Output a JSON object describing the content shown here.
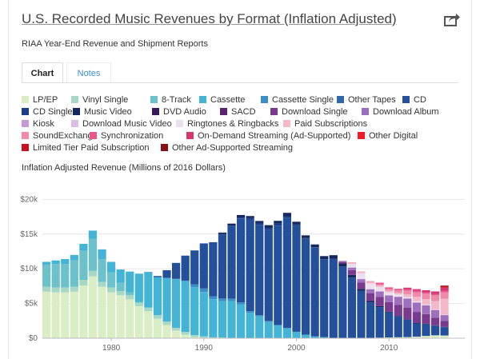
{
  "header": {
    "title": "U.S. Recorded Music Revenues by Format (Inflation Adjusted)",
    "subtitle": "RIAA Year-End Revenue and Shipment Reports",
    "share_icon": "share-icon"
  },
  "tabs": [
    {
      "label": "Chart"
    },
    {
      "label": "Notes"
    }
  ],
  "chart_data": {
    "type": "bar",
    "stacked": true,
    "title": "U.S. Recorded Music Revenues by Format (Inflation Adjusted)",
    "ylabel": "Inflation Adjusted Revenue (Millions of 2016 Dollars)",
    "xlabel": "",
    "ylim": [
      0,
      22000
    ],
    "yticks": [
      {
        "v": 0,
        "label": "$0"
      },
      {
        "v": 5000,
        "label": "$5k"
      },
      {
        "v": 10000,
        "label": "$10k"
      },
      {
        "v": 15000,
        "label": "$15k"
      },
      {
        "v": 20000,
        "label": "$20k"
      }
    ],
    "xticks": [
      1980,
      1990,
      2000,
      2010
    ],
    "categories": [
      1973,
      1974,
      1975,
      1976,
      1977,
      1978,
      1979,
      1980,
      1981,
      1982,
      1983,
      1984,
      1985,
      1986,
      1987,
      1988,
      1989,
      1990,
      1991,
      1992,
      1993,
      1994,
      1995,
      1996,
      1997,
      1998,
      1999,
      2000,
      2001,
      2002,
      2003,
      2004,
      2005,
      2006,
      2007,
      2008,
      2009,
      2010,
      2011,
      2012,
      2013,
      2014,
      2015,
      2016
    ],
    "series": [
      {
        "name": "LP/EP",
        "color": "#d9eec4",
        "values": [
          6700,
          6600,
          6600,
          6700,
          7600,
          8900,
          7400,
          6600,
          6200,
          5600,
          4600,
          3900,
          2800,
          1900,
          1100,
          500,
          150,
          60,
          30,
          20,
          10,
          10,
          10,
          10,
          10,
          10,
          10,
          10,
          10,
          10,
          10,
          10,
          10,
          10,
          10,
          50,
          80,
          110,
          140,
          160,
          230,
          330,
          420,
          390
        ]
      },
      {
        "name": "Vinyl Single",
        "color": "#a7d8c4",
        "values": [
          700,
          700,
          700,
          700,
          800,
          800,
          700,
          700,
          600,
          600,
          500,
          500,
          500,
          500,
          400,
          400,
          300,
          200,
          100,
          100,
          50,
          40,
          40,
          30,
          30,
          20,
          10,
          10,
          10,
          0,
          0,
          0,
          0,
          0,
          0,
          0,
          0,
          0,
          0,
          0,
          0,
          0,
          0,
          0
        ]
      },
      {
        "name": "8-Track",
        "color": "#6dc1cb",
        "values": [
          3200,
          3400,
          3400,
          3800,
          4200,
          4600,
          3300,
          2200,
          1200,
          400,
          100,
          30,
          10,
          0,
          0,
          0,
          0,
          0,
          0,
          0,
          0,
          0,
          0,
          0,
          0,
          0,
          0,
          0,
          0,
          0,
          0,
          0,
          0,
          0,
          0,
          0,
          0,
          0,
          0,
          0,
          0,
          0,
          0,
          0
        ]
      },
      {
        "name": "Cassette",
        "color": "#43b3d6",
        "values": [
          400,
          500,
          700,
          800,
          1000,
          1200,
          1400,
          1500,
          1900,
          3000,
          4100,
          5100,
          5500,
          6300,
          7000,
          7300,
          6900,
          6400,
          5500,
          5200,
          5300,
          4800,
          3600,
          3100,
          2300,
          1800,
          1400,
          900,
          500,
          250,
          150,
          40,
          20,
          10,
          0,
          0,
          0,
          0,
          0,
          0,
          0,
          0,
          0,
          0
        ]
      },
      {
        "name": "Cassette Single",
        "color": "#3a8fc8",
        "values": [
          0,
          0,
          0,
          0,
          0,
          0,
          0,
          0,
          0,
          0,
          0,
          0,
          0,
          0,
          50,
          100,
          400,
          500,
          400,
          400,
          350,
          300,
          250,
          200,
          150,
          80,
          40,
          10,
          0,
          0,
          0,
          0,
          0,
          0,
          0,
          0,
          0,
          0,
          0,
          0,
          0,
          0,
          0,
          0
        ]
      },
      {
        "name": "Other Tapes",
        "color": "#2e6aa8",
        "values": [
          0,
          0,
          0,
          0,
          0,
          0,
          0,
          0,
          0,
          0,
          0,
          0,
          0,
          0,
          0,
          0,
          0,
          0,
          0,
          0,
          0,
          0,
          0,
          0,
          0,
          0,
          0,
          0,
          0,
          0,
          0,
          0,
          0,
          0,
          0,
          0,
          0,
          0,
          0,
          0,
          0,
          0,
          0,
          0
        ]
      },
      {
        "name": "CD",
        "color": "#24509b",
        "values": [
          0,
          0,
          0,
          0,
          0,
          0,
          0,
          0,
          0,
          0,
          0,
          20,
          150,
          1100,
          2300,
          3600,
          4900,
          6500,
          7800,
          9300,
          10500,
          12100,
          13200,
          13000,
          13100,
          14300,
          15900,
          15300,
          13800,
          12800,
          11200,
          11400,
          10300,
          8700,
          6800,
          5100,
          4400,
          3600,
          3000,
          2500,
          1900,
          1700,
          1400,
          1200
        ]
      },
      {
        "name": "CD Single",
        "color": "#1c3d8c",
        "values": [
          0,
          0,
          0,
          0,
          0,
          0,
          0,
          0,
          0,
          0,
          0,
          0,
          0,
          0,
          0,
          0,
          0,
          0,
          0,
          0,
          0,
          100,
          200,
          250,
          300,
          300,
          200,
          150,
          100,
          50,
          20,
          10,
          0,
          0,
          0,
          0,
          0,
          0,
          0,
          0,
          0,
          0,
          0,
          0
        ]
      },
      {
        "name": "Music Video",
        "color": "#14275e",
        "values": [
          0,
          0,
          0,
          0,
          0,
          0,
          0,
          0,
          0,
          0,
          0,
          0,
          0,
          0,
          0,
          0,
          0,
          0,
          0,
          200,
          300,
          400,
          300,
          300,
          400,
          400,
          500,
          400,
          400,
          400,
          450,
          500,
          450,
          400,
          300,
          200,
          150,
          100,
          80,
          60,
          60,
          50,
          50,
          40
        ]
      },
      {
        "name": "DVD Audio",
        "color": "#3a1a5e",
        "values": [
          0,
          0,
          0,
          0,
          0,
          0,
          0,
          0,
          0,
          0,
          0,
          0,
          0,
          0,
          0,
          0,
          0,
          0,
          0,
          0,
          0,
          0,
          0,
          0,
          0,
          0,
          0,
          0,
          0,
          0,
          0,
          0,
          0,
          0,
          0,
          0,
          0,
          0,
          0,
          0,
          0,
          0,
          0,
          0
        ]
      },
      {
        "name": "SACD",
        "color": "#5a2570",
        "values": [
          0,
          0,
          0,
          0,
          0,
          0,
          0,
          0,
          0,
          0,
          0,
          0,
          0,
          0,
          0,
          0,
          0,
          0,
          0,
          0,
          0,
          0,
          0,
          0,
          0,
          0,
          0,
          0,
          0,
          0,
          0,
          0,
          0,
          0,
          0,
          0,
          0,
          0,
          0,
          0,
          0,
          0,
          0,
          0
        ]
      },
      {
        "name": "Download Single",
        "color": "#7a3a8e",
        "values": [
          0,
          0,
          0,
          0,
          0,
          0,
          0,
          0,
          0,
          0,
          0,
          0,
          0,
          0,
          0,
          0,
          0,
          0,
          0,
          0,
          0,
          0,
          0,
          0,
          0,
          0,
          0,
          0,
          0,
          0,
          0,
          0,
          200,
          700,
          900,
          1100,
          1300,
          1400,
          1600,
          1700,
          1600,
          1400,
          1100,
          850
        ]
      },
      {
        "name": "Download Album",
        "color": "#9e6fbf",
        "values": [
          0,
          0,
          0,
          0,
          0,
          0,
          0,
          0,
          0,
          0,
          0,
          0,
          0,
          0,
          0,
          0,
          0,
          0,
          0,
          0,
          0,
          0,
          0,
          0,
          0,
          0,
          0,
          0,
          0,
          0,
          0,
          0,
          150,
          350,
          500,
          600,
          800,
          950,
          1150,
          1300,
          1350,
          1250,
          1100,
          850
        ]
      },
      {
        "name": "Kiosk",
        "color": "#c59ad4",
        "values": [
          0,
          0,
          0,
          0,
          0,
          0,
          0,
          0,
          0,
          0,
          0,
          0,
          0,
          0,
          0,
          0,
          0,
          0,
          0,
          0,
          0,
          0,
          0,
          0,
          0,
          0,
          0,
          0,
          0,
          0,
          0,
          0,
          0,
          0,
          0,
          0,
          0,
          0,
          0,
          0,
          0,
          0,
          0,
          0
        ]
      },
      {
        "name": "Download Music Video",
        "color": "#d9bde3",
        "values": [
          0,
          0,
          0,
          0,
          0,
          0,
          0,
          0,
          0,
          0,
          0,
          0,
          0,
          0,
          0,
          0,
          0,
          0,
          0,
          0,
          0,
          0,
          0,
          0,
          0,
          0,
          0,
          0,
          0,
          0,
          0,
          0,
          0,
          30,
          50,
          50,
          50,
          40,
          30,
          20,
          20,
          10,
          10,
          10
        ]
      },
      {
        "name": "Ringtones & Ringbacks",
        "color": "#ece0ef",
        "values": [
          0,
          0,
          0,
          0,
          0,
          0,
          0,
          0,
          0,
          0,
          0,
          0,
          0,
          0,
          0,
          0,
          0,
          0,
          0,
          0,
          0,
          0,
          0,
          0,
          0,
          0,
          0,
          0,
          0,
          0,
          0,
          0,
          0,
          500,
          800,
          800,
          600,
          400,
          300,
          200,
          150,
          100,
          70,
          60
        ]
      },
      {
        "name": "Paid Subscriptions",
        "color": "#f5b8c8",
        "values": [
          0,
          0,
          0,
          0,
          0,
          0,
          0,
          0,
          0,
          0,
          0,
          0,
          0,
          0,
          0,
          0,
          0,
          0,
          0,
          0,
          0,
          0,
          0,
          0,
          0,
          0,
          0,
          0,
          0,
          0,
          0,
          0,
          0,
          200,
          200,
          200,
          220,
          230,
          260,
          400,
          650,
          800,
          1200,
          2300
        ]
      },
      {
        "name": "SoundExchange",
        "color": "#f08aa8",
        "values": [
          0,
          0,
          0,
          0,
          0,
          0,
          0,
          0,
          0,
          0,
          0,
          0,
          0,
          0,
          0,
          0,
          0,
          0,
          0,
          0,
          0,
          0,
          0,
          0,
          0,
          0,
          0,
          0,
          0,
          0,
          0,
          0,
          20,
          40,
          50,
          120,
          170,
          270,
          320,
          520,
          650,
          780,
          830,
          900
        ]
      },
      {
        "name": "Synchronization",
        "color": "#e8578c",
        "values": [
          0,
          0,
          0,
          0,
          0,
          0,
          0,
          0,
          0,
          0,
          0,
          0,
          0,
          0,
          0,
          0,
          0,
          0,
          0,
          0,
          0,
          0,
          0,
          0,
          0,
          0,
          0,
          0,
          0,
          0,
          0,
          0,
          0,
          0,
          0,
          0,
          230,
          230,
          230,
          220,
          210,
          200,
          210,
          210
        ]
      },
      {
        "name": "On-Demand Streaming (Ad-Supported)",
        "color": "#d93570",
        "values": [
          0,
          0,
          0,
          0,
          0,
          0,
          0,
          0,
          0,
          0,
          0,
          0,
          0,
          0,
          0,
          0,
          0,
          0,
          0,
          0,
          0,
          0,
          0,
          0,
          0,
          0,
          0,
          0,
          0,
          0,
          0,
          0,
          0,
          0,
          0,
          0,
          0,
          0,
          0,
          200,
          250,
          300,
          350,
          470
        ]
      },
      {
        "name": "Other Digital",
        "color": "#f21c24",
        "values": [
          0,
          0,
          0,
          0,
          0,
          0,
          0,
          0,
          0,
          0,
          0,
          0,
          0,
          0,
          0,
          0,
          0,
          0,
          0,
          0,
          0,
          0,
          0,
          0,
          0,
          0,
          0,
          0,
          0,
          0,
          0,
          0,
          0,
          0,
          0,
          0,
          0,
          0,
          0,
          0,
          0,
          0,
          0,
          0
        ]
      },
      {
        "name": "Limited Tier Paid Subscription",
        "color": "#c7121c",
        "values": [
          0,
          0,
          0,
          0,
          0,
          0,
          0,
          0,
          0,
          0,
          0,
          0,
          0,
          0,
          0,
          0,
          0,
          0,
          0,
          0,
          0,
          0,
          0,
          0,
          0,
          0,
          0,
          0,
          0,
          0,
          0,
          0,
          0,
          0,
          0,
          0,
          0,
          0,
          0,
          0,
          0,
          0,
          0,
          200
        ]
      },
      {
        "name": "Other Ad-Supported Streaming",
        "color": "#8b0e14",
        "values": [
          0,
          0,
          0,
          0,
          0,
          0,
          0,
          0,
          0,
          0,
          0,
          0,
          0,
          0,
          0,
          0,
          0,
          0,
          0,
          0,
          0,
          0,
          0,
          0,
          0,
          0,
          0,
          0,
          0,
          0,
          0,
          0,
          0,
          0,
          0,
          0,
          0,
          0,
          0,
          0,
          0,
          0,
          0,
          100
        ]
      }
    ]
  }
}
